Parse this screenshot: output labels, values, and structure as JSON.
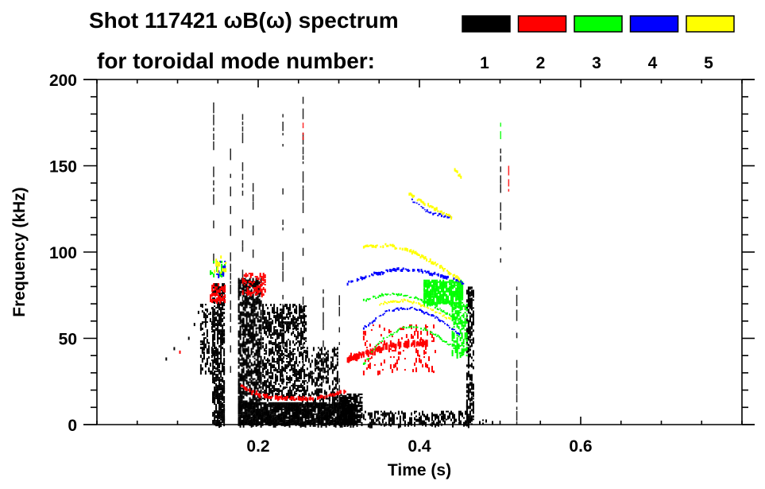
{
  "chart_data": {
    "type": "heatmap",
    "title_line1": "Shot 117421 ωB(ω) spectrum",
    "title_line2": "for toroidal mode number:",
    "xlabel": "Time (s)",
    "ylabel": "Frequency (kHz)",
    "xlim": [
      0.0,
      0.8
    ],
    "ylim": [
      0,
      200
    ],
    "x_major_ticks": [
      0.2,
      0.4,
      0.6
    ],
    "x_tick_labels": [
      "0.2",
      "0.4",
      "0.6"
    ],
    "x_minor_step": 0.05,
    "y_major_ticks": [
      0,
      50,
      100,
      150,
      200
    ],
    "y_tick_labels": [
      "0",
      "50",
      "100",
      "150",
      "200"
    ],
    "y_minor_step": 10,
    "grid": false,
    "legend": {
      "placement": "top-right",
      "entries": [
        {
          "label": "1",
          "mode": 1,
          "color": "#000000"
        },
        {
          "label": "2",
          "mode": 2,
          "color": "#ff0000"
        },
        {
          "label": "3",
          "mode": 3,
          "color": "#00ff00"
        },
        {
          "label": "4",
          "mode": 4,
          "color": "#0000ff"
        },
        {
          "label": "5",
          "mode": 5,
          "color": "#ffff00"
        }
      ]
    },
    "series": [
      {
        "name": "n=1",
        "mode": 1,
        "color": "#000000",
        "regions": [
          {
            "t": [
              0.143,
              0.158
            ],
            "f": [
              0,
              82
            ],
            "density": 0.55
          },
          {
            "t": [
              0.128,
              0.143
            ],
            "f": [
              30,
              70
            ],
            "density": 0.25
          },
          {
            "t": [
              0.175,
              0.205
            ],
            "f": [
              10,
              85
            ],
            "density": 0.5
          },
          {
            "t": [
              0.205,
              0.26
            ],
            "f": [
              15,
              70
            ],
            "density": 0.35
          },
          {
            "t": [
              0.26,
              0.3
            ],
            "f": [
              10,
              45
            ],
            "density": 0.25
          },
          {
            "t": [
              0.175,
              0.32
            ],
            "f": [
              0,
              13
            ],
            "density": 0.85
          },
          {
            "t": [
              0.3,
              0.33
            ],
            "f": [
              0,
              18
            ],
            "density": 0.6
          },
          {
            "t": [
              0.33,
              0.46
            ],
            "f": [
              0,
              8
            ],
            "density": 0.3
          },
          {
            "t": [
              0.458,
              0.468
            ],
            "f": [
              0,
              80
            ],
            "density": 0.45
          },
          {
            "t": [
              0.468,
              0.5
            ],
            "f": [
              0,
              3
            ],
            "density": 0.2
          }
        ],
        "streaks": [
          {
            "t": 0.144,
            "f": [
              80,
              190
            ]
          },
          {
            "t": 0.165,
            "f": [
              30,
              160
            ]
          },
          {
            "t": 0.18,
            "f": [
              40,
              180
            ]
          },
          {
            "t": 0.193,
            "f": [
              40,
              140
            ]
          },
          {
            "t": 0.23,
            "f": [
              20,
              180
            ]
          },
          {
            "t": 0.255,
            "f": [
              15,
              190
            ]
          },
          {
            "t": 0.28,
            "f": [
              10,
              85
            ]
          },
          {
            "t": 0.3,
            "f": [
              10,
              75
            ]
          },
          {
            "t": 0.52,
            "f": [
              0,
              80
            ]
          },
          {
            "t": 0.5,
            "f": [
              90,
              160
            ]
          }
        ],
        "points": [
          {
            "t": 0.085,
            "f": 38
          },
          {
            "t": 0.095,
            "f": 44
          },
          {
            "t": 0.113,
            "f": 50
          },
          {
            "t": 0.12,
            "f": 58
          },
          {
            "t": 0.125,
            "f": 65
          }
        ]
      },
      {
        "name": "n=2",
        "mode": 2,
        "color": "#ff0000",
        "curves": [
          {
            "t": [
              0.175,
              0.19,
              0.21,
              0.24,
              0.27,
              0.29,
              0.31
            ],
            "f": [
              24,
              19,
              16,
              15,
              15,
              17,
              20
            ],
            "width": 4
          },
          {
            "t": [
              0.31,
              0.33,
              0.35,
              0.37,
              0.39,
              0.41
            ],
            "f": [
              38,
              41,
              44,
              46,
              47,
              47
            ],
            "width": 7
          }
        ],
        "regions": [
          {
            "t": [
              0.14,
              0.16
            ],
            "f": [
              72,
              82
            ],
            "density": 0.4
          },
          {
            "t": [
              0.18,
              0.21
            ],
            "f": [
              75,
              88
            ],
            "density": 0.3
          },
          {
            "t": [
              0.33,
              0.42
            ],
            "f": [
              30,
              58
            ],
            "density": 0.08
          }
        ],
        "streaks": [
          {
            "t": 0.51,
            "f": [
              135,
              150
            ]
          },
          {
            "t": 0.255,
            "f": [
              165,
              175
            ]
          }
        ],
        "points": [
          {
            "t": 0.102,
            "f": 42
          }
        ]
      },
      {
        "name": "n=3",
        "mode": 3,
        "color": "#00ff00",
        "curves": [
          {
            "t": [
              0.33,
              0.35,
              0.38,
              0.41,
              0.44,
              0.455
            ],
            "f": [
              35,
              48,
              57,
              55,
              45,
              40
            ],
            "width": 2
          },
          {
            "t": [
              0.33,
              0.36,
              0.39,
              0.42,
              0.45
            ],
            "f": [
              72,
              76,
              74,
              68,
              60
            ],
            "width": 2
          }
        ],
        "regions": [
          {
            "t": [
              0.405,
              0.455
            ],
            "f": [
              70,
              84
            ],
            "density": 0.75
          },
          {
            "t": [
              0.44,
              0.46
            ],
            "f": [
              40,
              70
            ],
            "density": 0.35
          },
          {
            "t": [
              0.14,
              0.16
            ],
            "f": [
              85,
              95
            ],
            "density": 0.15
          }
        ],
        "streaks": [
          {
            "t": 0.5,
            "f": [
              165,
              175
            ]
          }
        ]
      },
      {
        "name": "n=4",
        "mode": 4,
        "color": "#0000ff",
        "curves": [
          {
            "t": [
              0.33,
              0.36,
              0.39,
              0.42,
              0.45
            ],
            "f": [
              56,
              66,
              68,
              62,
              52
            ],
            "width": 2
          },
          {
            "t": [
              0.31,
              0.34,
              0.37,
              0.4,
              0.43,
              0.455
            ],
            "f": [
              82,
              87,
              90,
              89,
              86,
              82
            ],
            "width": 3
          },
          {
            "t": [
              0.39,
              0.41,
              0.44
            ],
            "f": [
              130,
              123,
              120
            ],
            "width": 2
          }
        ],
        "regions": [
          {
            "t": [
              0.148,
              0.16
            ],
            "f": [
              85,
              95
            ],
            "density": 0.2
          }
        ]
      },
      {
        "name": "n=5",
        "mode": 5,
        "color": "#ffff00",
        "curves": [
          {
            "t": [
              0.33,
              0.36,
              0.39,
              0.42,
              0.45
            ],
            "f": [
              103,
              104,
              100,
              93,
              84
            ],
            "width": 3
          },
          {
            "t": [
              0.35,
              0.38,
              0.41,
              0.44
            ],
            "f": [
              70,
              72,
              68,
              60
            ],
            "width": 2
          },
          {
            "t": [
              0.385,
              0.41,
              0.44
            ],
            "f": [
              134,
              127,
              120
            ],
            "width": 3
          },
          {
            "t": [
              0.443,
              0.452
            ],
            "f": [
              148,
              142
            ],
            "width": 3
          }
        ],
        "regions": [
          {
            "t": [
              0.145,
              0.16
            ],
            "f": [
              88,
              98
            ],
            "density": 0.15
          }
        ]
      }
    ]
  }
}
